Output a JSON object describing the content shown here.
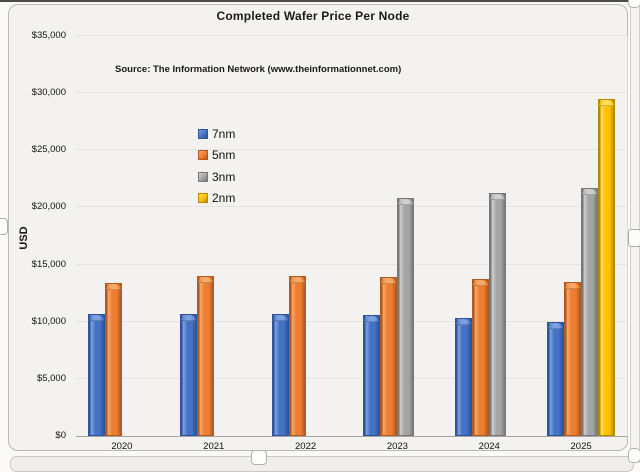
{
  "window": {
    "title": "Completed Wafer Price Per Node",
    "source": "Source: The Information Network (www.theinformationnet.com)"
  },
  "colors": {
    "series_7nm": "#4472C4",
    "series_5nm": "#ED7D31",
    "series_3nm": "#A5A5A5",
    "series_2nm": "#FFC000",
    "gridline": "#E4E3E1",
    "axis_line": "#A6A5A3"
  },
  "chart_data": {
    "type": "bar",
    "title": "Completed Wafer Price Per Node",
    "annotation": "Source: The Information Network (www.theinformationnet.com)",
    "categories": [
      "2020",
      "2021",
      "2022",
      "2023",
      "2024",
      "2025"
    ],
    "series": [
      {
        "name": "7nm",
        "color": "#4472C4",
        "light": "#7DA1E0",
        "dark": "#2E549C",
        "values": [
          10700,
          10700,
          10700,
          10600,
          10350,
          10000
        ]
      },
      {
        "name": "5nm",
        "color": "#ED7D31",
        "light": "#F5A869",
        "dark": "#AE5A21",
        "values": [
          13400,
          14000,
          14000,
          13900,
          13750,
          13500
        ]
      },
      {
        "name": "3nm",
        "color": "#A5A5A5",
        "light": "#CFCFCF",
        "dark": "#787878",
        "values": [
          null,
          null,
          null,
          20800,
          21300,
          21700
        ]
      },
      {
        "name": "2nm",
        "color": "#FFC000",
        "light": "#FFDE5C",
        "dark": "#B58A00",
        "values": [
          null,
          null,
          null,
          null,
          null,
          29450
        ]
      }
    ],
    "xlabel": "",
    "ylabel": "USD",
    "ylim": [
      0,
      35000
    ],
    "ytick_step": 5000,
    "ytick_labels": [
      "$0",
      "$5,000",
      "$10,000",
      "$15,000",
      "$20,000",
      "$25,000",
      "$30,000",
      "$35,000"
    ],
    "grid": true,
    "legend_position": "inside-upper-left",
    "legend_entries": [
      "7nm",
      "5nm",
      "3nm",
      "2nm"
    ]
  }
}
